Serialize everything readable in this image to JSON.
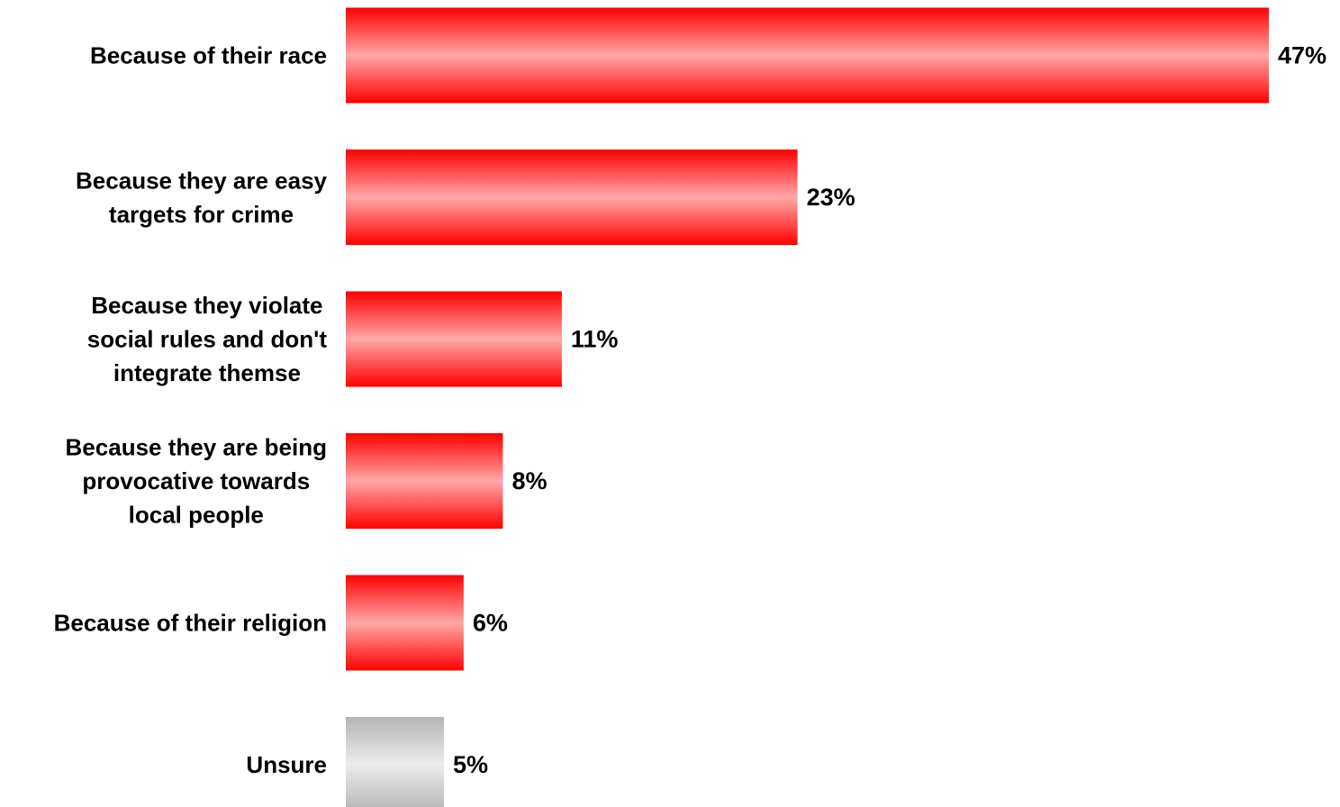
{
  "chart_data": {
    "type": "bar",
    "orientation": "horizontal",
    "categories": [
      [
        "Because of their race"
      ],
      [
        "Because they are easy",
        "targets for crime"
      ],
      [
        "Because they violate",
        "social rules and don't",
        "integrate themse"
      ],
      [
        "Because they are being",
        "provocative towards",
        "local people"
      ],
      [
        "Because of their religion"
      ],
      [
        "Unsure"
      ]
    ],
    "values": [
      47,
      23,
      11,
      8,
      6,
      5
    ],
    "value_labels": [
      "47%",
      "23%",
      "11%",
      "8%",
      "6%",
      "5%"
    ],
    "unit": "%",
    "bar_styles": [
      "red",
      "red",
      "red",
      "red",
      "red",
      "gray"
    ],
    "colors": {
      "red_edge": "#ff0000",
      "red_center": "#ffa8a8",
      "gray_edge": "#b4b4b4",
      "gray_center": "#ececec"
    },
    "grid": false,
    "legend": "none",
    "xlim": [
      0,
      47
    ]
  }
}
